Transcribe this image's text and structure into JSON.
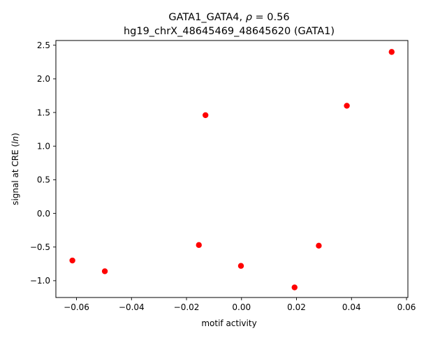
{
  "chart_data": {
    "type": "scatter",
    "title_prefix": "GATA1_GATA4, ",
    "title_rho": "ρ",
    "title_suffix": " = 0.56",
    "subtitle": "hg19_chrX_48645469_48645620 (GATA1)",
    "xlabel": "motif activity",
    "ylabel_prefix": "signal at CRE (",
    "ylabel_math": "ln",
    "ylabel_suffix": ")",
    "xlim": [
      -0.0675,
      0.0605
    ],
    "ylim": [
      -1.25,
      2.57
    ],
    "xticks": [
      {
        "value": -0.06,
        "label": "−0.06"
      },
      {
        "value": -0.04,
        "label": "−0.04"
      },
      {
        "value": -0.02,
        "label": "−0.02"
      },
      {
        "value": 0.0,
        "label": "0.00"
      },
      {
        "value": 0.02,
        "label": "0.02"
      },
      {
        "value": 0.04,
        "label": "0.04"
      },
      {
        "value": 0.06,
        "label": "0.06"
      }
    ],
    "yticks": [
      {
        "value": -1.0,
        "label": "−1.0"
      },
      {
        "value": -0.5,
        "label": "−0.5"
      },
      {
        "value": 0.0,
        "label": "0.0"
      },
      {
        "value": 0.5,
        "label": "0.5"
      },
      {
        "value": 1.0,
        "label": "1.0"
      },
      {
        "value": 1.5,
        "label": "1.5"
      },
      {
        "value": 2.0,
        "label": "2.0"
      },
      {
        "value": 2.5,
        "label": "2.5"
      }
    ],
    "marker_color": "#ff0000",
    "points": [
      {
        "x": -0.0615,
        "y": -0.7
      },
      {
        "x": -0.0497,
        "y": -0.86
      },
      {
        "x": -0.0155,
        "y": -0.47
      },
      {
        "x": -0.0131,
        "y": 1.46
      },
      {
        "x": -0.0002,
        "y": -0.78
      },
      {
        "x": 0.0193,
        "y": -1.1
      },
      {
        "x": 0.0281,
        "y": -0.48
      },
      {
        "x": 0.0383,
        "y": 1.6
      },
      {
        "x": 0.0546,
        "y": 2.4
      }
    ]
  }
}
